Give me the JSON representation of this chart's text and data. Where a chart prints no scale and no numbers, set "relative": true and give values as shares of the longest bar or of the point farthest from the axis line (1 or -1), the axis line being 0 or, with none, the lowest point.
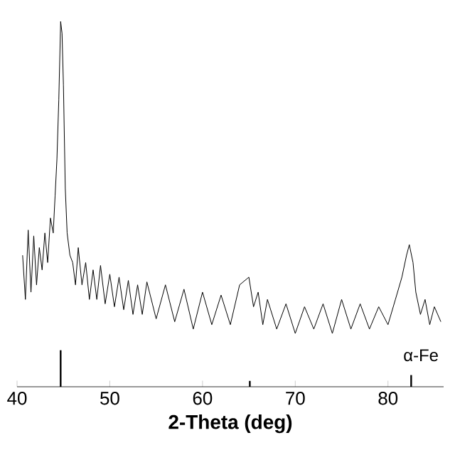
{
  "chart_data": {
    "type": "line",
    "relative": true,
    "xlabel": "2-Theta (deg)",
    "xlim": [
      40,
      86
    ],
    "xticks": [
      40,
      50,
      60,
      70,
      80
    ],
    "annotations": [
      "α-Fe"
    ],
    "grid": false,
    "marker": "none",
    "line_style": "solid",
    "series": [
      {
        "color": "#000000",
        "x": [
          40.6,
          40.9,
          41.2,
          41.5,
          41.8,
          42.1,
          42.4,
          42.7,
          43.0,
          43.3,
          43.6,
          43.9,
          44.1,
          44.3,
          44.5,
          44.7,
          44.85,
          45.0,
          45.2,
          45.4,
          45.7,
          46.0,
          46.3,
          46.6,
          47.0,
          47.4,
          47.8,
          48.2,
          48.6,
          49.0,
          49.5,
          50.0,
          50.5,
          51.0,
          51.5,
          52.0,
          52.5,
          53.0,
          53.5,
          54.0,
          55,
          56,
          57,
          58,
          59,
          60,
          61,
          62,
          63,
          64,
          65,
          65.5,
          66,
          66.5,
          67,
          68,
          69,
          70,
          71,
          72,
          73,
          74,
          75,
          76,
          77,
          78,
          79,
          80,
          80.8,
          81.5,
          82.0,
          82.3,
          82.7,
          83.0,
          83.5,
          84,
          84.5,
          85,
          85.7
        ],
        "values": [
          0.36,
          0.239,
          0.429,
          0.259,
          0.413,
          0.279,
          0.381,
          0.32,
          0.421,
          0.34,
          0.462,
          0.421,
          0.522,
          0.623,
          0.785,
          1,
          0.968,
          0.826,
          0.543,
          0.421,
          0.36,
          0.34,
          0.279,
          0.381,
          0.279,
          0.34,
          0.239,
          0.32,
          0.239,
          0.332,
          0.227,
          0.308,
          0.219,
          0.3,
          0.211,
          0.291,
          0.198,
          0.279,
          0.198,
          0.287,
          0.186,
          0.279,
          0.178,
          0.267,
          0.158,
          0.259,
          0.17,
          0.251,
          0.17,
          0.279,
          0.3,
          0.219,
          0.259,
          0.17,
          0.239,
          0.158,
          0.227,
          0.146,
          0.219,
          0.158,
          0.227,
          0.146,
          0.239,
          0.158,
          0.227,
          0.158,
          0.219,
          0.17,
          0.239,
          0.3,
          0.36,
          0.389,
          0.34,
          0.259,
          0.198,
          0.239,
          0.17,
          0.219,
          0.178
        ]
      },
      {
        "type": "bar",
        "color": "#000000",
        "x": [
          44.7,
          65.1,
          82.5
        ],
        "values": [
          0.1,
          0.016,
          0.032
        ]
      }
    ]
  }
}
